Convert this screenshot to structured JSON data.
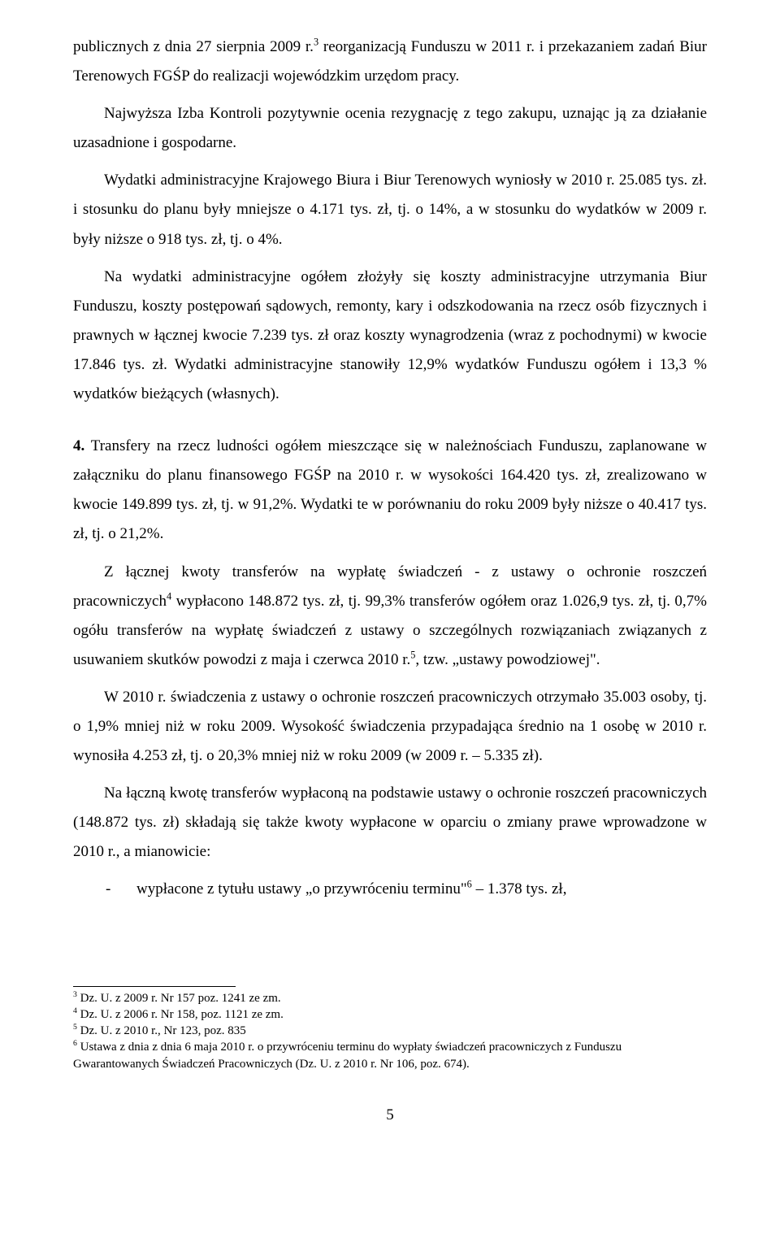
{
  "paragraphs": {
    "p1a": "publicznych z dnia 27 sierpnia 2009 r.",
    "p1sup": "3",
    "p1b": " reorganizacją Funduszu w 2011 r. i przekazaniem zadań Biur Terenowych FGŚP do realizacji wojewódzkim urzędom pracy.",
    "p2": "Najwyższa Izba Kontroli pozytywnie ocenia rezygnację z tego zakupu, uznając ją za działanie uzasadnione i gospodarne.",
    "p3": "Wydatki administracyjne Krajowego Biura i Biur Terenowych wyniosły w 2010 r. 25.085 tys. zł. i stosunku do planu były mniejsze o 4.171 tys. zł, tj. o 14%, a w stosunku do wydatków w 2009 r. były niższe o 918 tys. zł, tj. o 4%.",
    "p4": "Na wydatki administracyjne ogółem złożyły się koszty administracyjne utrzymania Biur Funduszu, koszty postępowań sądowych, remonty, kary i odszkodowania na rzecz osób fizycznych i prawnych w łącznej kwocie 7.239 tys. zł oraz koszty wynagrodzenia (wraz z pochodnymi) w kwocie 17.846 tys. zł. Wydatki administracyjne stanowiły 12,9% wydatków Funduszu ogółem i 13,3 % wydatków bieżących (własnych).",
    "section4_num": "4.",
    "p5": " Transfery na rzecz ludności ogółem mieszczące się w należnościach Funduszu, zaplanowane w załączniku do planu finansowego FGŚP na 2010 r. w wysokości 164.420 tys. zł, zrealizowano w kwocie 149.899 tys. zł, tj. w 91,2%. Wydatki te w porównaniu do roku 2009 były niższe o 40.417 tys. zł, tj. o 21,2%.",
    "p6a": "Z łącznej kwoty transferów na wypłatę świadczeń - z ustawy o ochronie roszczeń pracowniczych",
    "p6sup1": "4",
    "p6b": " wypłacono 148.872 tys. zł, tj. 99,3% transferów ogółem oraz 1.026,9 tys. zł, tj. 0,7% ogółu transferów na wypłatę świadczeń z ustawy o szczególnych rozwiązaniach związanych z usuwaniem skutków powodzi z maja i czerwca 2010 r.",
    "p6sup2": "5",
    "p6c": ", tzw. „ustawy powodziowej\".",
    "p7": "W 2010 r. świadczenia z ustawy o ochronie roszczeń pracowniczych otrzymało 35.003 osoby, tj. o 1,9% mniej niż w roku 2009. Wysokość świadczenia przypadająca średnio na 1 osobę w 2010 r. wynosiła 4.253 zł, tj. o 20,3% mniej niż w roku 2009 (w 2009 r. – 5.335 zł).",
    "p8": "Na łączną kwotę transferów wypłaconą na podstawie ustawy o ochronie roszczeń pracowniczych (148.872 tys. zł) składają się także kwoty wypłacone w oparciu o zmiany prawe wprowadzone w 2010 r., a mianowicie:",
    "bullet_mark": "-",
    "bullet1a": "wypłacone z tytułu ustawy „o przywróceniu terminu\"",
    "bullet1sup": "6",
    "bullet1b": " – 1.378 tys. zł,"
  },
  "footnotes": {
    "f3sup": "3",
    "f3": " Dz. U. z 2009 r. Nr 157 poz. 1241 ze zm.",
    "f4sup": "4",
    "f4": " Dz. U. z 2006 r. Nr 158, poz. 1121 ze zm.",
    "f5sup": "5",
    "f5": " Dz. U. z 2010 r., Nr 123, poz. 835",
    "f6sup": "6",
    "f6": " Ustawa z dnia z dnia 6 maja 2010 r. o przywróceniu terminu do wypłaty świadczeń pracowniczych z Funduszu Gwarantowanych Świadczeń Pracowniczych (Dz. U. z 2010 r. Nr 106, poz. 674)."
  },
  "page_number": "5"
}
